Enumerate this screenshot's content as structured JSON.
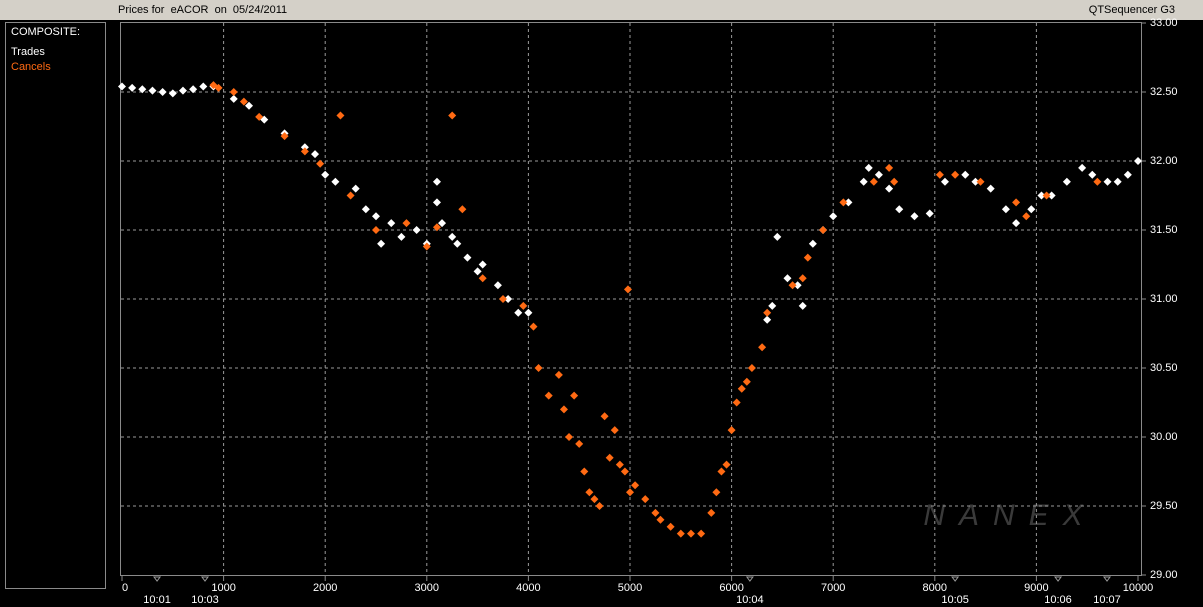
{
  "chart_data": {
    "type": "scatter",
    "title": "Prices for  eACOR  on  05/24/2011",
    "app_name": "QTSequencer G3",
    "legend_header": "COMPOSITE:",
    "watermark": "NANEX",
    "grid": true,
    "xlim": [
      0,
      10000
    ],
    "ylim": [
      29,
      33
    ],
    "xticks": [
      0,
      1000,
      2000,
      3000,
      4000,
      5000,
      6000,
      7000,
      8000,
      9000,
      10000
    ],
    "yticks": [
      {
        "value": 29,
        "label": "29.00"
      },
      {
        "value": 29.5,
        "label": "29.50"
      },
      {
        "value": 30,
        "label": "30.00"
      },
      {
        "value": 30.5,
        "label": "30.50"
      },
      {
        "value": 31,
        "label": "31.00"
      },
      {
        "value": 31.5,
        "label": "31.50"
      },
      {
        "value": 32,
        "label": "32.00"
      },
      {
        "value": 32.5,
        "label": "32.50"
      },
      {
        "value": 33,
        "label": "33.00"
      }
    ],
    "x_time_ticks": [
      {
        "value": 345,
        "label": "10:01"
      },
      {
        "value": 817,
        "label": "10:03"
      },
      {
        "value": 6180,
        "label": "10:04"
      },
      {
        "value": 8200,
        "label": "10:05"
      },
      {
        "value": 9213,
        "label": "10:06"
      },
      {
        "value": 9695,
        "label": "10:07"
      }
    ],
    "series": [
      {
        "name": "Trades",
        "color": "#ffffff",
        "x": [
          0,
          100,
          200,
          300,
          400,
          500,
          600,
          700,
          800,
          900,
          1100,
          1250,
          1400,
          1600,
          1800,
          1900,
          2000,
          2100,
          2300,
          2400,
          2500,
          2550,
          2650,
          2750,
          2900,
          3000,
          3100,
          3100,
          3150,
          3250,
          3300,
          3400,
          3500,
          3550,
          3700,
          3800,
          3900,
          4000,
          6350,
          6400,
          6450,
          6550,
          6650,
          6700,
          6800,
          6900,
          7000,
          7150,
          7300,
          7350,
          7450,
          7550,
          7650,
          7800,
          7950,
          8100,
          8300,
          8400,
          8550,
          8700,
          8800,
          8950,
          9050,
          9150,
          9300,
          9450,
          9550,
          9700,
          9800,
          9900,
          10000
        ],
        "values": [
          32.54,
          32.53,
          32.52,
          32.51,
          32.5,
          32.49,
          32.51,
          32.52,
          32.54,
          32.54,
          32.45,
          32.4,
          32.3,
          32.2,
          32.1,
          32.05,
          31.9,
          31.85,
          31.8,
          31.65,
          31.6,
          31.4,
          31.55,
          31.45,
          31.5,
          31.4,
          31.85,
          31.7,
          31.55,
          31.45,
          31.4,
          31.3,
          31.2,
          31.25,
          31.1,
          31.0,
          30.9,
          30.9,
          30.85,
          30.95,
          31.45,
          31.15,
          31.1,
          30.95,
          31.4,
          31.5,
          31.6,
          31.7,
          31.85,
          31.95,
          31.9,
          31.8,
          31.65,
          31.6,
          31.62,
          31.85,
          31.9,
          31.85,
          31.8,
          31.65,
          31.55,
          31.65,
          31.75,
          31.75,
          31.85,
          31.95,
          31.9,
          31.85,
          31.85,
          31.9,
          32.0
        ]
      },
      {
        "name": "Cancels",
        "color": "#ff6a13",
        "x": [
          900,
          950,
          1100,
          1200,
          1350,
          1600,
          1800,
          1950,
          2150,
          2250,
          2500,
          2800,
          3000,
          3100,
          3250,
          3350,
          3550,
          3750,
          3950,
          4050,
          4100,
          4200,
          4300,
          4350,
          4450,
          4400,
          4500,
          4550,
          4600,
          4650,
          4700,
          4750,
          4800,
          4850,
          4900,
          4950,
          4980,
          5000,
          5050,
          5150,
          5250,
          5300,
          5400,
          5500,
          5600,
          5700,
          5800,
          5850,
          5900,
          5950,
          6000,
          6050,
          6100,
          6150,
          6200,
          6300,
          6350,
          6600,
          6700,
          6750,
          6900,
          7100,
          7400,
          7550,
          7600,
          8050,
          8200,
          8450,
          8800,
          8900,
          9100,
          9600
        ],
        "values": [
          32.55,
          32.53,
          32.5,
          32.43,
          32.32,
          32.18,
          32.07,
          31.98,
          32.33,
          31.75,
          31.5,
          31.55,
          31.38,
          31.52,
          32.33,
          31.65,
          31.15,
          31.0,
          30.95,
          30.8,
          30.5,
          30.3,
          30.45,
          30.2,
          30.3,
          30.0,
          29.95,
          29.75,
          29.6,
          29.55,
          29.5,
          30.15,
          29.85,
          30.05,
          29.8,
          29.75,
          31.07,
          29.6,
          29.65,
          29.55,
          29.45,
          29.4,
          29.35,
          29.3,
          29.3,
          29.3,
          29.45,
          29.6,
          29.75,
          29.8,
          30.05,
          30.25,
          30.35,
          30.4,
          30.5,
          30.65,
          30.9,
          31.1,
          31.15,
          31.3,
          31.5,
          31.7,
          31.85,
          31.95,
          31.85,
          31.9,
          31.9,
          31.85,
          31.7,
          31.6,
          31.75,
          31.85
        ]
      }
    ]
  }
}
